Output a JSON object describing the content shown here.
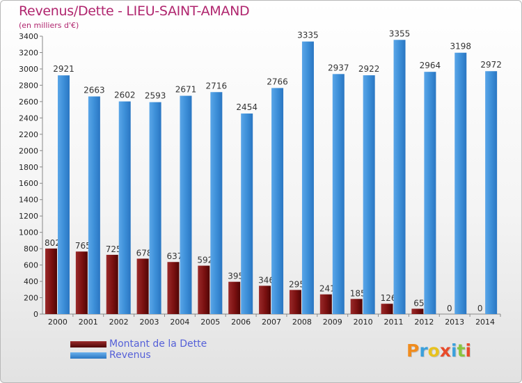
{
  "title": "Revenus/Dette - LIEU-SAINT-AMAND",
  "subtitle": "(en milliers d'€)",
  "colors": {
    "title": "#b0256e",
    "dette": "#7a1010",
    "revenus": "#3d8fd8",
    "legend_text": "#5560d8"
  },
  "chart_data": {
    "type": "bar",
    "categories": [
      "2000",
      "2001",
      "2002",
      "2003",
      "2004",
      "2005",
      "2006",
      "2007",
      "2008",
      "2009",
      "2010",
      "2011",
      "2012",
      "2013",
      "2014"
    ],
    "series": [
      {
        "name": "Montant de la Dette",
        "values": [
          802,
          765,
          725,
          678,
          637,
          592,
          395,
          346,
          295,
          241,
          185,
          126,
          65,
          0,
          0
        ]
      },
      {
        "name": "Revenus",
        "values": [
          2921,
          2663,
          2602,
          2593,
          2671,
          2716,
          2454,
          2766,
          3335,
          2937,
          2922,
          3355,
          2964,
          3198,
          2972
        ]
      }
    ],
    "yticks": [
      0,
      200,
      400,
      600,
      800,
      1000,
      1200,
      1400,
      1600,
      1800,
      2000,
      2200,
      2400,
      2600,
      2800,
      3000,
      3200,
      3400
    ],
    "ylim": [
      0,
      3400
    ],
    "grid": false,
    "legend_position": "bottom-left"
  },
  "legend": {
    "dette_label": "Montant de la Dette",
    "revenus_label": "Revenus"
  },
  "logo": {
    "text": "Proxiti",
    "letter_colors": [
      "#f08c1e",
      "#3aa0dc",
      "#e8c21e",
      "#e84a2a",
      "#3aa0dc",
      "#8bc43f",
      "#e84a2a"
    ]
  }
}
